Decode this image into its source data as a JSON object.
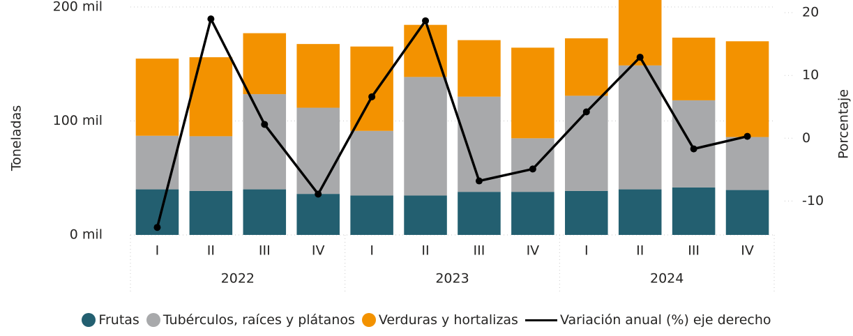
{
  "chart_data": {
    "type": "bar",
    "stacked": true,
    "categories": [
      "I",
      "II",
      "III",
      "IV",
      "I",
      "II",
      "III",
      "IV",
      "I",
      "II",
      "III",
      "IV"
    ],
    "groups": [
      "2022",
      "2023",
      "2024"
    ],
    "ylabel": "Toneladas",
    "y2label": "Porcentaje",
    "ylim": [
      0,
      200000
    ],
    "yticks": [
      {
        "value": 0,
        "label": "0 mil"
      },
      {
        "value": 100000,
        "label": "100 mil"
      },
      {
        "value": 200000,
        "label": "200 mil"
      }
    ],
    "y2lim": [
      -15.4,
      20.9
    ],
    "y2ticks": [
      -10,
      0,
      10,
      20
    ],
    "grid": true,
    "legend": "bottom",
    "series": [
      {
        "name": "Frutas",
        "color": "#235f70",
        "values": [
          40000,
          38600,
          40000,
          36000,
          34600,
          34600,
          37800,
          37800,
          38600,
          40000,
          41700,
          39400
        ]
      },
      {
        "name": "Tubérculos, raíces y plátanos",
        "color": "#a8a9ab",
        "values": [
          47000,
          48000,
          83500,
          75600,
          56700,
          104000,
          83500,
          47000,
          83500,
          108700,
          76400,
          46500
        ]
      },
      {
        "name": "Verduras y hortalizas",
        "color": "#f39200",
        "values": [
          67700,
          69300,
          53500,
          55900,
          74000,
          45700,
          49600,
          79500,
          50400,
          59000,
          55000,
          84000
        ]
      },
      {
        "name": "Variación anual (%) eje derecho",
        "color": "#000000",
        "type": "line",
        "axis": "y2",
        "values": [
          -14.2,
          19,
          2.2,
          -8.9,
          6.6,
          18.7,
          -6.8,
          -4.9,
          4.2,
          12.9,
          -1.7,
          0.3
        ]
      }
    ]
  }
}
